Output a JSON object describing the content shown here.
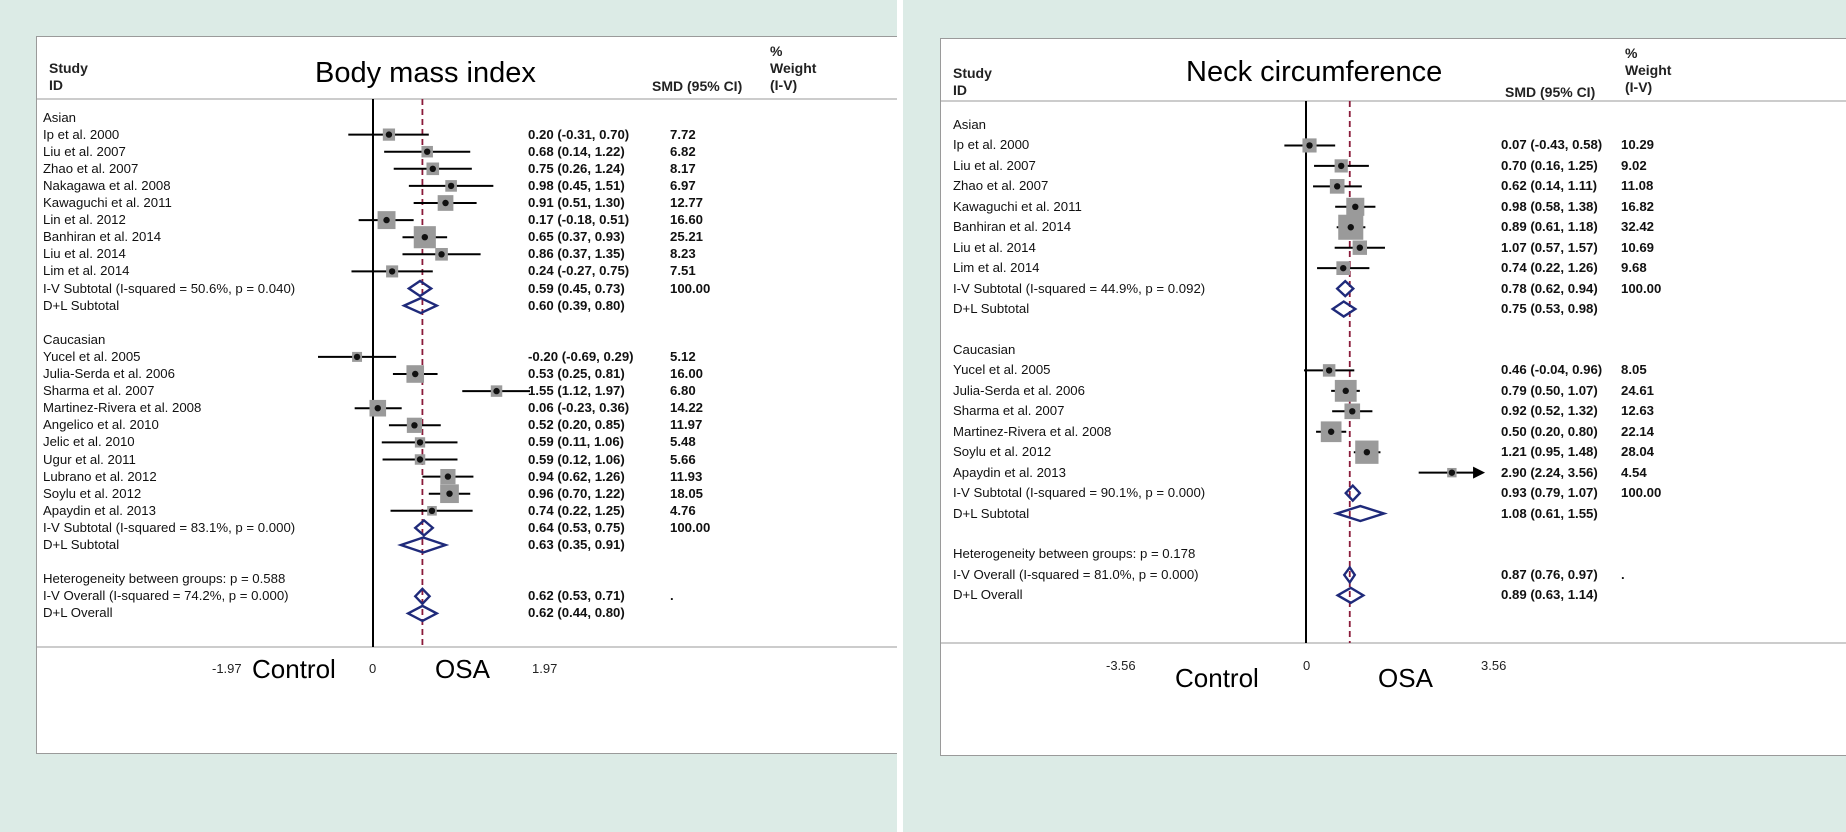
{
  "chart_data": [
    {
      "type": "forest",
      "title": "Body mass index",
      "columns": {
        "study": "Study",
        "id": "ID",
        "estimate": "SMD (95% CI)",
        "weight_lines": [
          "%",
          "Weight",
          "(I-V)"
        ]
      },
      "axis": {
        "min_label": "-1.97",
        "zero_label": "0",
        "max_label": "1.97",
        "range": [
          -1.97,
          1.97
        ],
        "left_label": "Control",
        "right_label": "OSA",
        "overall_line": 0.62
      },
      "rows": [
        {
          "kind": "header",
          "label": "Asian"
        },
        {
          "kind": "study",
          "label": "Ip et al. 2000",
          "smd": 0.2,
          "lo": -0.31,
          "hi": 0.7,
          "ci_text": "0.20 (-0.31, 0.70)",
          "weight": 7.72,
          "weight_text": "7.72"
        },
        {
          "kind": "study",
          "label": "Liu et al. 2007",
          "smd": 0.68,
          "lo": 0.14,
          "hi": 1.22,
          "ci_text": "0.68 (0.14, 1.22)",
          "weight": 6.82,
          "weight_text": "6.82"
        },
        {
          "kind": "study",
          "label": "Zhao et al. 2007",
          "smd": 0.75,
          "lo": 0.26,
          "hi": 1.24,
          "ci_text": "0.75 (0.26, 1.24)",
          "weight": 8.17,
          "weight_text": "8.17"
        },
        {
          "kind": "study",
          "label": "Nakagawa et al. 2008",
          "smd": 0.98,
          "lo": 0.45,
          "hi": 1.51,
          "ci_text": "0.98 (0.45, 1.51)",
          "weight": 6.97,
          "weight_text": "6.97"
        },
        {
          "kind": "study",
          "label": "Kawaguchi et al. 2011",
          "smd": 0.91,
          "lo": 0.51,
          "hi": 1.3,
          "ci_text": "0.91 (0.51, 1.30)",
          "weight": 12.77,
          "weight_text": "12.77"
        },
        {
          "kind": "study",
          "label": "Lin et al. 2012",
          "smd": 0.17,
          "lo": -0.18,
          "hi": 0.51,
          "ci_text": "0.17 (-0.18, 0.51)",
          "weight": 16.6,
          "weight_text": "16.60"
        },
        {
          "kind": "study",
          "label": "Banhiran et al. 2014",
          "smd": 0.65,
          "lo": 0.37,
          "hi": 0.93,
          "ci_text": "0.65 (0.37, 0.93)",
          "weight": 25.21,
          "weight_text": "25.21"
        },
        {
          "kind": "study",
          "label": "Liu et al. 2014",
          "smd": 0.86,
          "lo": 0.37,
          "hi": 1.35,
          "ci_text": "0.86 (0.37, 1.35)",
          "weight": 8.23,
          "weight_text": "8.23"
        },
        {
          "kind": "study",
          "label": "Lim et al. 2014",
          "smd": 0.24,
          "lo": -0.27,
          "hi": 0.75,
          "ci_text": "0.24 (-0.27, 0.75)",
          "weight": 7.51,
          "weight_text": "7.51"
        },
        {
          "kind": "subtotal",
          "label": "I-V Subtotal  (I-squared = 50.6%, p = 0.040)",
          "smd": 0.59,
          "lo": 0.45,
          "hi": 0.73,
          "ci_text": "0.59 (0.45, 0.73)",
          "weight_text": "100.00"
        },
        {
          "kind": "subtotal",
          "label": "D+L Subtotal",
          "smd": 0.6,
          "lo": 0.39,
          "hi": 0.8,
          "ci_text": "0.60 (0.39, 0.80)",
          "weight_text": ""
        },
        {
          "kind": "blank"
        },
        {
          "kind": "header",
          "label": "Caucasian"
        },
        {
          "kind": "study",
          "label": "Yucel et al. 2005",
          "smd": -0.2,
          "lo": -0.69,
          "hi": 0.29,
          "ci_text": "-0.20 (-0.69, 0.29)",
          "weight": 5.12,
          "weight_text": "5.12"
        },
        {
          "kind": "study",
          "label": "Julia-Serda et al. 2006",
          "smd": 0.53,
          "lo": 0.25,
          "hi": 0.81,
          "ci_text": "0.53 (0.25, 0.81)",
          "weight": 16.0,
          "weight_text": "16.00"
        },
        {
          "kind": "study",
          "label": "Sharma et al. 2007",
          "smd": 1.55,
          "lo": 1.12,
          "hi": 1.97,
          "ci_text": "1.55 (1.12, 1.97)",
          "weight": 6.8,
          "weight_text": "6.80"
        },
        {
          "kind": "study",
          "label": "Martinez-Rivera et al. 2008",
          "smd": 0.06,
          "lo": -0.23,
          "hi": 0.36,
          "ci_text": "0.06 (-0.23, 0.36)",
          "weight": 14.22,
          "weight_text": "14.22"
        },
        {
          "kind": "study",
          "label": "Angelico et al. 2010",
          "smd": 0.52,
          "lo": 0.2,
          "hi": 0.85,
          "ci_text": "0.52 (0.20, 0.85)",
          "weight": 11.97,
          "weight_text": "11.97"
        },
        {
          "kind": "study",
          "label": "Jelic et al. 2010",
          "smd": 0.59,
          "lo": 0.11,
          "hi": 1.06,
          "ci_text": "0.59 (0.11, 1.06)",
          "weight": 5.48,
          "weight_text": "5.48"
        },
        {
          "kind": "study",
          "label": "Ugur et al. 2011",
          "smd": 0.59,
          "lo": 0.12,
          "hi": 1.06,
          "ci_text": "0.59 (0.12, 1.06)",
          "weight": 5.66,
          "weight_text": "5.66"
        },
        {
          "kind": "study",
          "label": "Lubrano et al. 2012",
          "smd": 0.94,
          "lo": 0.62,
          "hi": 1.26,
          "ci_text": "0.94 (0.62, 1.26)",
          "weight": 11.93,
          "weight_text": "11.93"
        },
        {
          "kind": "study",
          "label": "Soylu et al. 2012",
          "smd": 0.96,
          "lo": 0.7,
          "hi": 1.22,
          "ci_text": "0.96 (0.70, 1.22)",
          "weight": 18.05,
          "weight_text": "18.05"
        },
        {
          "kind": "study",
          "label": "Apaydin et al. 2013",
          "smd": 0.74,
          "lo": 0.22,
          "hi": 1.25,
          "ci_text": "0.74 (0.22, 1.25)",
          "weight": 4.76,
          "weight_text": "4.76"
        },
        {
          "kind": "subtotal",
          "label": "I-V Subtotal  (I-squared = 83.1%, p = 0.000)",
          "smd": 0.64,
          "lo": 0.53,
          "hi": 0.75,
          "ci_text": "0.64 (0.53, 0.75)",
          "weight_text": "100.00"
        },
        {
          "kind": "subtotal",
          "label": "D+L Subtotal",
          "smd": 0.63,
          "lo": 0.35,
          "hi": 0.91,
          "ci_text": "0.63 (0.35, 0.91)",
          "weight_text": ""
        },
        {
          "kind": "blank"
        },
        {
          "kind": "text",
          "label": "Heterogeneity between groups: p = 0.588"
        },
        {
          "kind": "subtotal",
          "label": "I-V Overall  (I-squared = 74.2%, p = 0.000)",
          "smd": 0.62,
          "lo": 0.53,
          "hi": 0.71,
          "ci_text": "0.62 (0.53, 0.71)",
          "weight_text": "."
        },
        {
          "kind": "subtotal",
          "label": "D+L Overall",
          "smd": 0.62,
          "lo": 0.44,
          "hi": 0.8,
          "ci_text": "0.62 (0.44, 0.80)",
          "weight_text": ""
        }
      ]
    },
    {
      "type": "forest",
      "title": "Neck circumference",
      "columns": {
        "study": "Study",
        "id": "ID",
        "estimate": "SMD (95% CI)",
        "weight_lines": [
          "%",
          "Weight",
          "(I-V)"
        ]
      },
      "axis": {
        "min_label": "-3.56",
        "zero_label": "0",
        "max_label": "3.56",
        "range": [
          -3.56,
          3.56
        ],
        "left_label": "Control",
        "right_label": "OSA",
        "overall_line": 0.87
      },
      "rows": [
        {
          "kind": "header",
          "label": "Asian"
        },
        {
          "kind": "study",
          "label": "Ip et al. 2000",
          "smd": 0.07,
          "lo": -0.43,
          "hi": 0.58,
          "ci_text": "0.07 (-0.43, 0.58)",
          "weight": 10.29,
          "weight_text": "10.29"
        },
        {
          "kind": "study",
          "label": "Liu et al. 2007",
          "smd": 0.7,
          "lo": 0.16,
          "hi": 1.25,
          "ci_text": "0.70 (0.16, 1.25)",
          "weight": 9.02,
          "weight_text": "9.02"
        },
        {
          "kind": "study",
          "label": "Zhao et al. 2007",
          "smd": 0.62,
          "lo": 0.14,
          "hi": 1.11,
          "ci_text": "0.62 (0.14, 1.11)",
          "weight": 11.08,
          "weight_text": "11.08"
        },
        {
          "kind": "study",
          "label": "Kawaguchi et al. 2011",
          "smd": 0.98,
          "lo": 0.58,
          "hi": 1.38,
          "ci_text": "0.98 (0.58, 1.38)",
          "weight": 16.82,
          "weight_text": "16.82"
        },
        {
          "kind": "study",
          "label": "Banhiran et al. 2014",
          "smd": 0.89,
          "lo": 0.61,
          "hi": 1.18,
          "ci_text": "0.89 (0.61, 1.18)",
          "weight": 32.42,
          "weight_text": "32.42"
        },
        {
          "kind": "study",
          "label": "Liu et al. 2014",
          "smd": 1.07,
          "lo": 0.57,
          "hi": 1.57,
          "ci_text": "1.07 (0.57, 1.57)",
          "weight": 10.69,
          "weight_text": "10.69"
        },
        {
          "kind": "study",
          "label": "Lim et al. 2014",
          "smd": 0.74,
          "lo": 0.22,
          "hi": 1.26,
          "ci_text": "0.74 (0.22, 1.26)",
          "weight": 9.68,
          "weight_text": "9.68"
        },
        {
          "kind": "subtotal",
          "label": "I-V Subtotal  (I-squared = 44.9%, p = 0.092)",
          "smd": 0.78,
          "lo": 0.62,
          "hi": 0.94,
          "ci_text": "0.78 (0.62, 0.94)",
          "weight_text": "100.00"
        },
        {
          "kind": "subtotal",
          "label": "D+L Subtotal",
          "smd": 0.75,
          "lo": 0.53,
          "hi": 0.98,
          "ci_text": "0.75 (0.53, 0.98)",
          "weight_text": ""
        },
        {
          "kind": "blank"
        },
        {
          "kind": "header",
          "label": "Caucasian"
        },
        {
          "kind": "study",
          "label": "Yucel et al. 2005",
          "smd": 0.46,
          "lo": -0.04,
          "hi": 0.96,
          "ci_text": "0.46 (-0.04, 0.96)",
          "weight": 8.05,
          "weight_text": "8.05"
        },
        {
          "kind": "study",
          "label": "Julia-Serda et al. 2006",
          "smd": 0.79,
          "lo": 0.5,
          "hi": 1.07,
          "ci_text": "0.79 (0.50, 1.07)",
          "weight": 24.61,
          "weight_text": "24.61"
        },
        {
          "kind": "study",
          "label": "Sharma et al. 2007",
          "smd": 0.92,
          "lo": 0.52,
          "hi": 1.32,
          "ci_text": "0.92 (0.52, 1.32)",
          "weight": 12.63,
          "weight_text": "12.63"
        },
        {
          "kind": "study",
          "label": "Martinez-Rivera et al. 2008",
          "smd": 0.5,
          "lo": 0.2,
          "hi": 0.8,
          "ci_text": "0.50 (0.20, 0.80)",
          "weight": 22.14,
          "weight_text": "22.14"
        },
        {
          "kind": "study",
          "label": "Soylu et al. 2012",
          "smd": 1.21,
          "lo": 0.95,
          "hi": 1.48,
          "ci_text": "1.21 (0.95, 1.48)",
          "weight": 28.04,
          "weight_text": "28.04"
        },
        {
          "kind": "study",
          "label": "Apaydin et al. 2013",
          "smd": 2.9,
          "lo": 2.24,
          "hi": 3.56,
          "ci_text": "2.90 (2.24, 3.56)",
          "weight": 4.54,
          "weight_text": "4.54",
          "arrow": true
        },
        {
          "kind": "subtotal",
          "label": "I-V Subtotal  (I-squared = 90.1%, p = 0.000)",
          "smd": 0.93,
          "lo": 0.79,
          "hi": 1.07,
          "ci_text": "0.93 (0.79, 1.07)",
          "weight_text": "100.00"
        },
        {
          "kind": "subtotal",
          "label": "D+L Subtotal",
          "smd": 1.08,
          "lo": 0.61,
          "hi": 1.55,
          "ci_text": "1.08 (0.61, 1.55)",
          "weight_text": ""
        },
        {
          "kind": "blank"
        },
        {
          "kind": "text",
          "label": "Heterogeneity between groups: p = 0.178"
        },
        {
          "kind": "subtotal",
          "label": "I-V Overall  (I-squared = 81.0%, p = 0.000)",
          "smd": 0.87,
          "lo": 0.76,
          "hi": 0.97,
          "ci_text": "0.87 (0.76, 0.97)",
          "weight_text": "."
        },
        {
          "kind": "subtotal",
          "label": "D+L Overall",
          "smd": 0.89,
          "lo": 0.63,
          "hi": 1.14,
          "ci_text": "0.89 (0.63, 1.14)",
          "weight_text": ""
        }
      ]
    }
  ]
}
